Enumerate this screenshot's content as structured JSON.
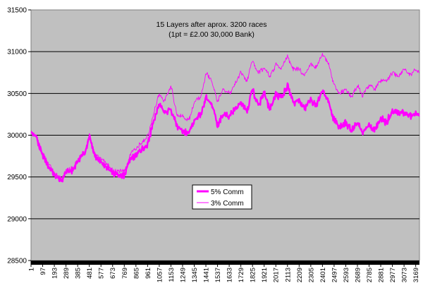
{
  "chart_data": {
    "type": "line",
    "title": "15 Layers after aprox. 3200 races",
    "subtitle": "(1pt = £2.00 30,000 Bank)",
    "xlabel": "",
    "ylabel": "",
    "ylim": [
      28500,
      31500
    ],
    "yticks": [
      28500,
      29000,
      29500,
      30000,
      30500,
      31000,
      31500
    ],
    "xlim": [
      1,
      3200
    ],
    "xtick_labels": [
      "1",
      "97",
      "193",
      "289",
      "385",
      "481",
      "577",
      "673",
      "769",
      "865",
      "961",
      "1057",
      "1153",
      "1249",
      "1345",
      "1441",
      "1537",
      "1633",
      "1729",
      "1825",
      "1921",
      "2017",
      "2113",
      "2209",
      "2305",
      "2401",
      "2497",
      "2593",
      "2689",
      "2785",
      "2881",
      "2977",
      "3073",
      "3169"
    ],
    "grid": "horizontal",
    "legend_position": "lower-center",
    "plot_background": "#c0c0c0",
    "series": [
      {
        "name": "5% Comm",
        "color": "#ff00ff",
        "linewidth": "thick",
        "x": [
          1,
          40,
          97,
          193,
          260,
          289,
          350,
          385,
          450,
          481,
          520,
          577,
          640,
          673,
          720,
          769,
          820,
          865,
          910,
          961,
          1000,
          1057,
          1100,
          1153,
          1200,
          1249,
          1300,
          1345,
          1400,
          1441,
          1490,
          1537,
          1580,
          1633,
          1680,
          1729,
          1780,
          1825,
          1870,
          1921,
          1970,
          2017,
          2060,
          2113,
          2160,
          2209,
          2250,
          2305,
          2350,
          2401,
          2450,
          2497,
          2540,
          2593,
          2640,
          2689,
          2730,
          2785,
          2830,
          2881,
          2930,
          2977,
          3030,
          3073,
          3120,
          3169,
          3200
        ],
        "values": [
          30040,
          29980,
          29760,
          29520,
          29460,
          29560,
          29580,
          29680,
          29800,
          30000,
          29760,
          29680,
          29600,
          29540,
          29520,
          29520,
          29720,
          29760,
          29820,
          29900,
          30100,
          30380,
          30280,
          30300,
          30120,
          30050,
          30020,
          30180,
          30250,
          30450,
          30380,
          30100,
          30250,
          30220,
          30300,
          30400,
          30280,
          30550,
          30350,
          30500,
          30300,
          30500,
          30450,
          30600,
          30400,
          30400,
          30320,
          30420,
          30350,
          30550,
          30400,
          30180,
          30100,
          30150,
          30060,
          30150,
          30020,
          30120,
          30060,
          30200,
          30150,
          30300,
          30250,
          30280,
          30220,
          30260,
          30240
        ]
      },
      {
        "name": "3% Comm",
        "color": "#ff00ff",
        "linewidth": "thin",
        "x": [
          1,
          40,
          97,
          193,
          260,
          289,
          350,
          385,
          450,
          481,
          520,
          577,
          640,
          673,
          720,
          769,
          820,
          865,
          910,
          961,
          1000,
          1057,
          1100,
          1153,
          1200,
          1249,
          1300,
          1345,
          1400,
          1441,
          1490,
          1537,
          1580,
          1633,
          1680,
          1729,
          1780,
          1825,
          1870,
          1921,
          1970,
          2017,
          2060,
          2113,
          2160,
          2209,
          2250,
          2305,
          2350,
          2401,
          2450,
          2497,
          2540,
          2593,
          2640,
          2689,
          2730,
          2785,
          2830,
          2881,
          2930,
          2977,
          3030,
          3073,
          3120,
          3169,
          3200
        ],
        "values": [
          30040,
          29990,
          29780,
          29540,
          29480,
          29580,
          29600,
          29700,
          29830,
          30020,
          29790,
          29720,
          29640,
          29580,
          29560,
          29570,
          29780,
          29840,
          29900,
          29980,
          30200,
          30500,
          30400,
          30600,
          30250,
          30220,
          30180,
          30400,
          30450,
          30750,
          30650,
          30400,
          30550,
          30500,
          30600,
          30750,
          30650,
          30900,
          30750,
          30800,
          30700,
          30850,
          30800,
          30950,
          30780,
          30800,
          30700,
          30850,
          30800,
          30980,
          30850,
          30600,
          30500,
          30550,
          30450,
          30600,
          30480,
          30600,
          30550,
          30650,
          30650,
          30750,
          30700,
          30800,
          30720,
          30780,
          30760
        ]
      }
    ]
  }
}
